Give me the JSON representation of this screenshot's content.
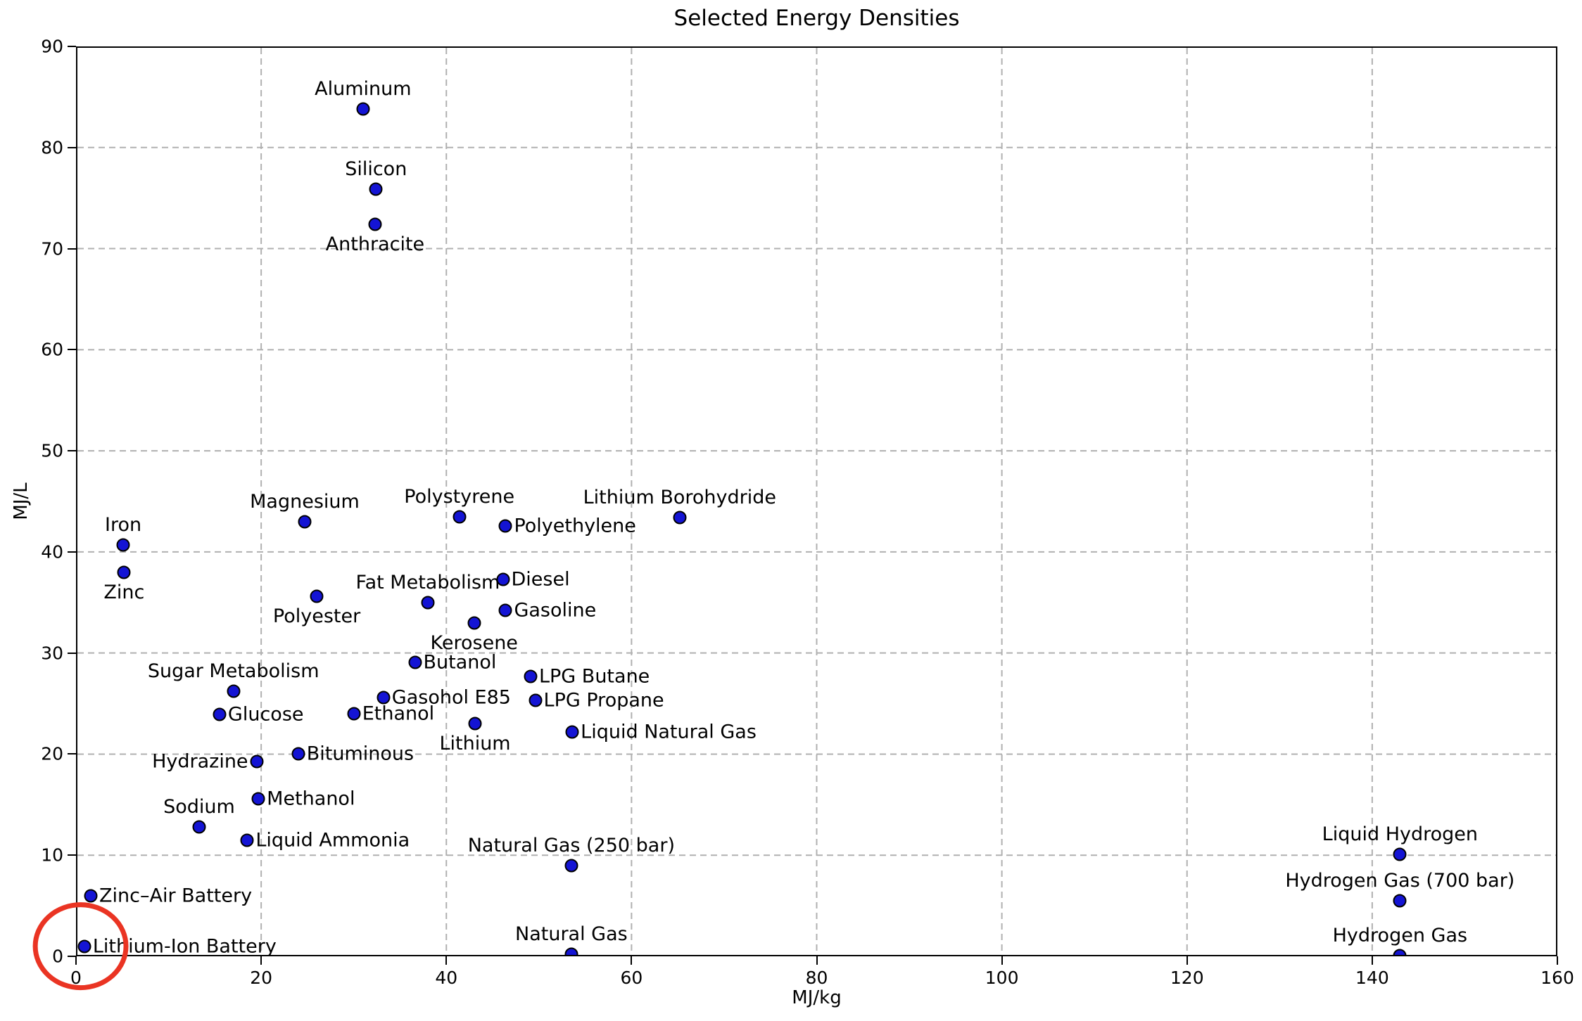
{
  "title": "Selected Energy Densities",
  "colors": {
    "marker_fill": "#1414d4",
    "marker_edge": "#000000",
    "grid": "#b0b0b0",
    "spine": "#000000",
    "annotation": "#ea3423"
  },
  "chart_data": {
    "type": "scatter",
    "title": "Selected Energy Densities",
    "xlabel": "MJ/kg",
    "ylabel": "MJ/L",
    "xlim": [
      0,
      160
    ],
    "ylim": [
      0,
      90
    ],
    "x_ticks": [
      0,
      20,
      40,
      60,
      80,
      100,
      120,
      140,
      160
    ],
    "y_ticks": [
      0,
      10,
      20,
      30,
      40,
      50,
      60,
      70,
      80,
      90
    ],
    "grid": true,
    "legend": false,
    "points": [
      {
        "label": "Aluminum",
        "x": 31.0,
        "y": 83.8,
        "label_pos": "above"
      },
      {
        "label": "Silicon",
        "x": 32.4,
        "y": 75.9,
        "label_pos": "above"
      },
      {
        "label": "Anthracite",
        "x": 32.3,
        "y": 72.4,
        "label_pos": "below"
      },
      {
        "label": "Magnesium",
        "x": 24.7,
        "y": 43.0,
        "label_pos": "above"
      },
      {
        "label": "Iron",
        "x": 5.1,
        "y": 40.7,
        "label_pos": "above"
      },
      {
        "label": "Zinc",
        "x": 5.2,
        "y": 38.0,
        "label_pos": "below"
      },
      {
        "label": "Polystyrene",
        "x": 41.4,
        "y": 43.5,
        "label_pos": "above"
      },
      {
        "label": "Lithium Borohydride",
        "x": 65.2,
        "y": 43.4,
        "label_pos": "above"
      },
      {
        "label": "Polyethylene",
        "x": 46.4,
        "y": 42.6,
        "label_pos": "right"
      },
      {
        "label": "Diesel",
        "x": 46.1,
        "y": 37.3,
        "label_pos": "right"
      },
      {
        "label": "Fat Metabolism",
        "x": 38.0,
        "y": 35.0,
        "label_pos": "above"
      },
      {
        "label": "Polyester",
        "x": 26.0,
        "y": 35.6,
        "label_pos": "below"
      },
      {
        "label": "Gasoline",
        "x": 46.4,
        "y": 34.2,
        "label_pos": "right"
      },
      {
        "label": "Kerosene",
        "x": 43.0,
        "y": 33.0,
        "label_pos": "below"
      },
      {
        "label": "Butanol",
        "x": 36.6,
        "y": 29.1,
        "label_pos": "right"
      },
      {
        "label": "LPG Butane",
        "x": 49.1,
        "y": 27.7,
        "label_pos": "right"
      },
      {
        "label": "Sugar Metabolism",
        "x": 17.0,
        "y": 26.2,
        "label_pos": "above"
      },
      {
        "label": "Gasohol E85",
        "x": 33.2,
        "y": 25.6,
        "label_pos": "right"
      },
      {
        "label": "LPG Propane",
        "x": 49.6,
        "y": 25.3,
        "label_pos": "right"
      },
      {
        "label": "Glucose",
        "x": 15.5,
        "y": 23.9,
        "label_pos": "right"
      },
      {
        "label": "Ethanol",
        "x": 30.0,
        "y": 24.0,
        "label_pos": "right"
      },
      {
        "label": "Lithium",
        "x": 43.1,
        "y": 23.0,
        "label_pos": "below"
      },
      {
        "label": "Liquid Natural Gas",
        "x": 53.6,
        "y": 22.2,
        "label_pos": "right"
      },
      {
        "label": "Bituminous",
        "x": 24.0,
        "y": 20.0,
        "label_pos": "right"
      },
      {
        "label": "Hydrazine",
        "x": 19.5,
        "y": 19.3,
        "label_pos": "left"
      },
      {
        "label": "Methanol",
        "x": 19.7,
        "y": 15.6,
        "label_pos": "right"
      },
      {
        "label": "Sodium",
        "x": 13.3,
        "y": 12.8,
        "label_pos": "above"
      },
      {
        "label": "Liquid Ammonia",
        "x": 18.5,
        "y": 11.5,
        "label_pos": "right"
      },
      {
        "label": "Natural Gas (250 bar)",
        "x": 53.5,
        "y": 9.0,
        "label_pos": "above"
      },
      {
        "label": "Zinc–Air Battery",
        "x": 1.6,
        "y": 6.0,
        "label_pos": "right"
      },
      {
        "label": "Lithium-Ion Battery",
        "x": 0.9,
        "y": 1.0,
        "label_pos": "right"
      },
      {
        "label": "Natural Gas",
        "x": 53.5,
        "y": 0.2,
        "label_pos": "above"
      },
      {
        "label": "Liquid Hydrogen",
        "x": 143.0,
        "y": 10.1,
        "label_pos": "above"
      },
      {
        "label": "Hydrogen Gas (700 bar)",
        "x": 143.0,
        "y": 5.5,
        "label_pos": "above"
      },
      {
        "label": "Hydrogen Gas",
        "x": 143.0,
        "y": 0.1,
        "label_pos": "above"
      }
    ],
    "annotation": {
      "shape": "ellipse",
      "around_point": "Lithium-Ion Battery",
      "center_x": 0.5,
      "center_y": 1.0,
      "rx_units": 4.9,
      "ry_units": 4.1,
      "stroke_width": 7
    }
  }
}
